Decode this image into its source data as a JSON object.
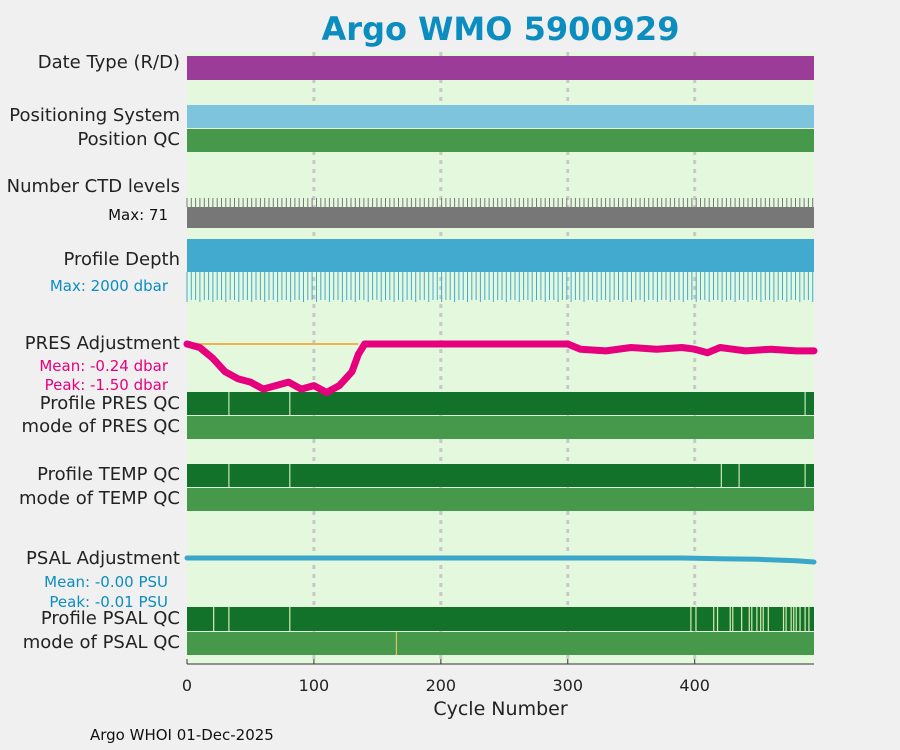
{
  "title": "Argo WMO 5900929",
  "footer": "Argo WHOI 01-Dec-2025",
  "colors": {
    "panel_bg": "#e4f8de",
    "date_type": "#9b3d98",
    "positioning": "#7ec4dc",
    "qc_good": "#46994a",
    "profile_qc_dark": "#12722a",
    "ctd": "#777777",
    "depth": "#43aacf",
    "pres_adj": "#e6007e",
    "pres_ref": "#f0b24a",
    "psal_adj": "#3aa6c9",
    "title": "#0c8dbf"
  },
  "labels": {
    "date_type": "Date Type (R/D)",
    "positioning": "Positioning System",
    "position_qc": "Position QC",
    "ctd_levels": "Number CTD levels",
    "ctd_max": "Max: 71",
    "profile_depth": "Profile Depth",
    "depth_max": "Max: 2000 dbar",
    "pres_adj": "PRES Adjustment",
    "pres_mean": "Mean: -0.24 dbar",
    "pres_peak": "Peak: -1.50 dbar",
    "profile_pres_qc": "Profile PRES QC",
    "mode_pres_qc": "mode of PRES QC",
    "profile_temp_qc": "Profile TEMP QC",
    "mode_temp_qc": "mode of TEMP QC",
    "psal_adj": "PSAL Adjustment",
    "psal_mean": "Mean: -0.00 PSU",
    "psal_peak": "Peak: -0.01 PSU",
    "profile_psal_qc": "Profile PSAL QC",
    "mode_psal_qc": "mode of PSAL QC"
  },
  "chart_data": {
    "type": "line",
    "xlabel": "Cycle Number",
    "xlim": [
      0,
      494
    ],
    "xticks": [
      0,
      100,
      200,
      300,
      400
    ],
    "grid": true,
    "pres_adjustment": {
      "cycles": [
        0,
        10,
        20,
        30,
        40,
        50,
        60,
        70,
        80,
        90,
        100,
        110,
        120,
        130,
        135,
        140,
        200,
        240,
        300,
        310,
        330,
        350,
        370,
        390,
        400,
        410,
        420,
        430,
        440,
        460,
        480,
        494
      ],
      "values": [
        0.0,
        -0.1,
        -0.4,
        -0.8,
        -1.0,
        -1.1,
        -1.3,
        -1.2,
        -1.1,
        -1.3,
        -1.2,
        -1.4,
        -1.2,
        -0.8,
        -0.3,
        0.0,
        0.0,
        0.0,
        0.0,
        -0.15,
        -0.2,
        -0.1,
        -0.15,
        -0.1,
        -0.15,
        -0.25,
        -0.1,
        -0.15,
        -0.2,
        -0.15,
        -0.2,
        -0.2
      ],
      "reference_line": {
        "x": [
          0,
          135
        ],
        "value": 0.0
      }
    },
    "psal_adjustment": {
      "cycles": [
        0,
        50,
        100,
        200,
        300,
        390,
        420,
        450,
        480,
        494
      ],
      "values": [
        0.0,
        0.0,
        0.0,
        0.0,
        0.0,
        0.0,
        -0.001,
        -0.002,
        -0.004,
        -0.006
      ]
    },
    "profile_pres_qc_marks": [
      33,
      81,
      487
    ],
    "profile_temp_qc_marks": [
      33,
      81,
      421,
      435,
      487
    ],
    "profile_psal_qc_marks": [
      21,
      33,
      81,
      397,
      401,
      415,
      418,
      428,
      430,
      437,
      443,
      445,
      449,
      452,
      454,
      458,
      470,
      472,
      476,
      478,
      480,
      483,
      487,
      490
    ],
    "mode_psal_qc_marks": [
      165
    ]
  }
}
